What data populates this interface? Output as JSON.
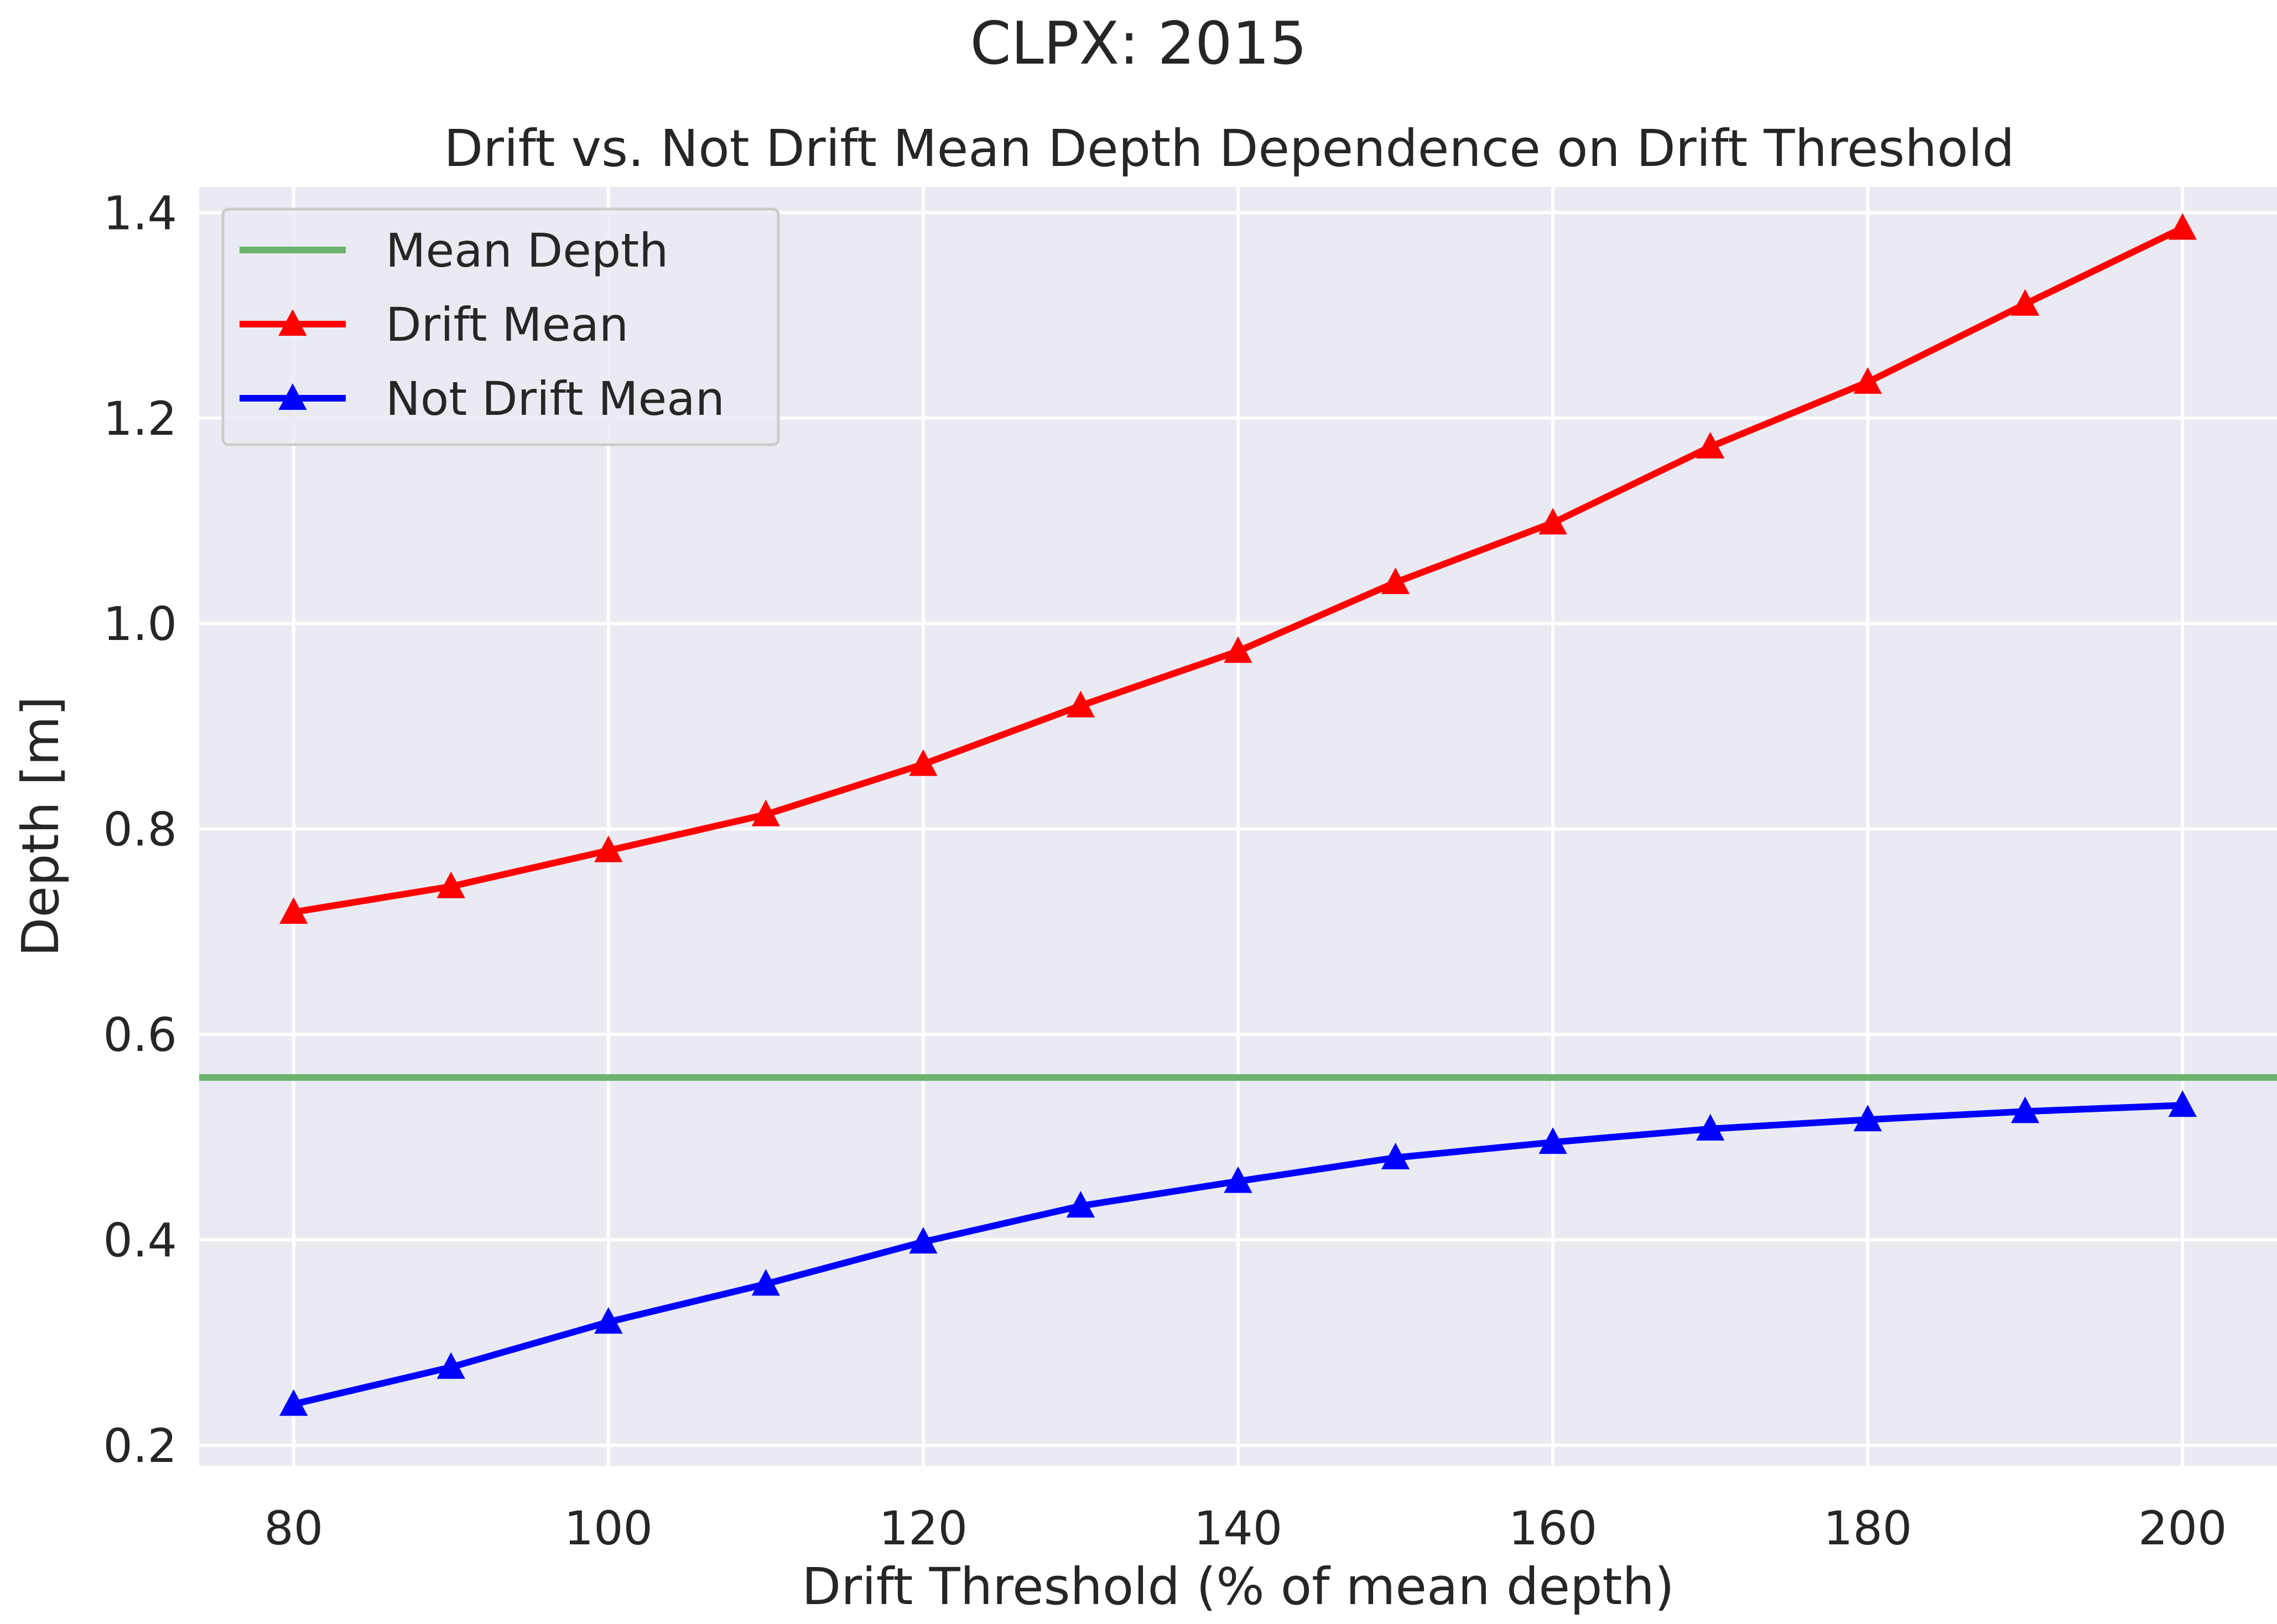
{
  "chart_data": {
    "type": "line",
    "suptitle": "CLPX: 2015",
    "title": "Drift vs. Not Drift Mean Depth Dependence on Drift Threshold",
    "xlabel": "Drift Threshold (% of mean depth)",
    "ylabel": "Depth [m]",
    "xlim": [
      74,
      206
    ],
    "ylim": [
      0.18,
      1.425
    ],
    "xticks": [
      80,
      100,
      120,
      140,
      160,
      180,
      200
    ],
    "yticks": [
      0.2,
      0.4,
      0.6,
      0.8,
      1.0,
      1.2,
      1.4
    ],
    "xtick_labels": [
      "80",
      "100",
      "120",
      "140",
      "160",
      "180",
      "200"
    ],
    "ytick_labels": [
      "0.2",
      "0.4",
      "0.6",
      "0.8",
      "1.0",
      "1.2",
      "1.4"
    ],
    "grid": true,
    "legend_position": "upper-left",
    "background_color": "#eaeaf2",
    "grid_color": "#ffffff",
    "x": [
      80,
      90,
      100,
      110,
      120,
      130,
      140,
      150,
      160,
      170,
      180,
      190,
      200
    ],
    "hlines": [
      {
        "name": "Mean Depth",
        "y": 0.558,
        "color": "#6ab46d"
      }
    ],
    "series": [
      {
        "name": "Drift Mean",
        "color": "#ff0000",
        "marker": "triangle",
        "values": [
          0.719,
          0.744,
          0.779,
          0.814,
          0.863,
          0.92,
          0.973,
          1.04,
          1.098,
          1.172,
          1.235,
          1.311,
          1.385
        ]
      },
      {
        "name": "Not Drift Mean",
        "color": "#0000ff",
        "marker": "triangle",
        "values": [
          0.24,
          0.276,
          0.32,
          0.357,
          0.398,
          0.433,
          0.457,
          0.48,
          0.495,
          0.508,
          0.517,
          0.525,
          0.531
        ]
      }
    ]
  }
}
